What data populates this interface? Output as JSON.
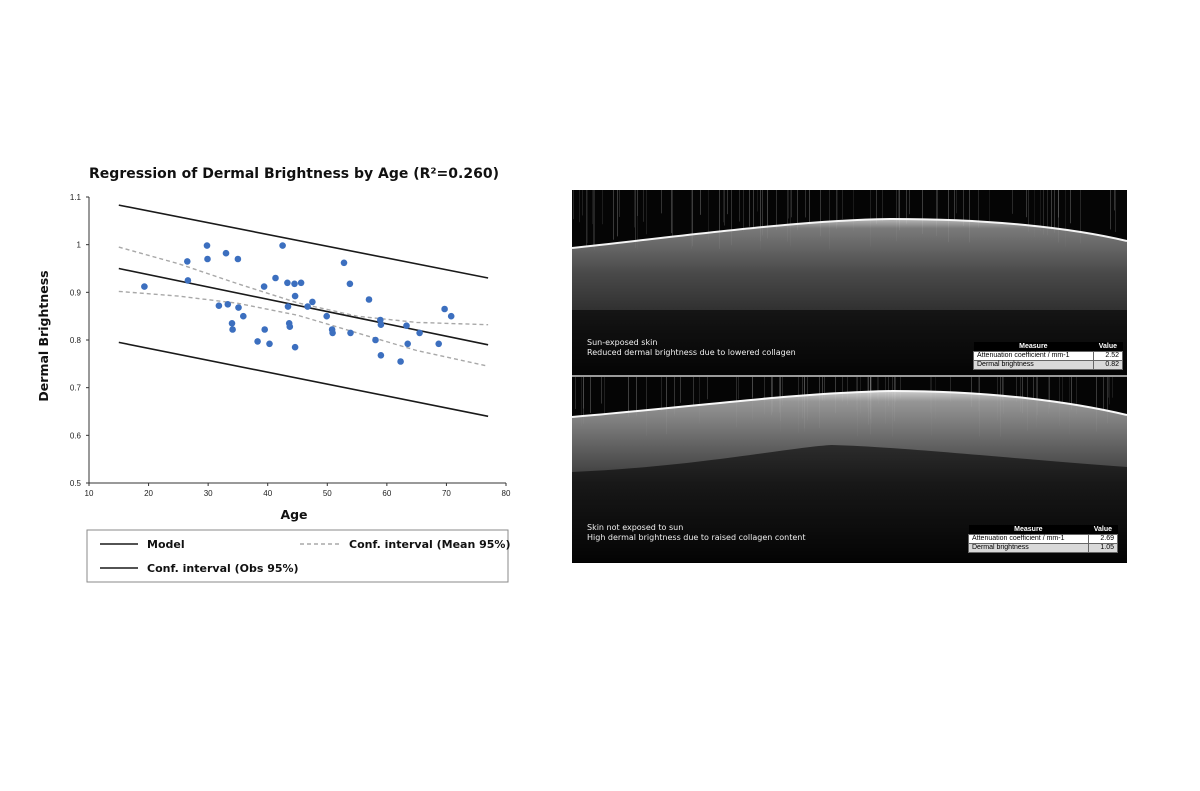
{
  "chart_data": {
    "type": "scatter",
    "title": "Regression of Dermal Brightness by Age (R²=0.260)",
    "xlabel": "Age",
    "ylabel": "Dermal Brightness",
    "xlim": [
      10,
      80
    ],
    "ylim": [
      0.5,
      1.1
    ],
    "xticks": [
      10,
      20,
      30,
      40,
      50,
      60,
      70,
      80
    ],
    "yticks": [
      0.5,
      0.6,
      0.7,
      0.8,
      0.9,
      1,
      1.1
    ],
    "points": [
      [
        19.3,
        0.912
      ],
      [
        26.5,
        0.965
      ],
      [
        26.6,
        0.925
      ],
      [
        29.8,
        0.998
      ],
      [
        29.9,
        0.97
      ],
      [
        31.8,
        0.872
      ],
      [
        33.0,
        0.982
      ],
      [
        33.3,
        0.875
      ],
      [
        34.0,
        0.835
      ],
      [
        34.1,
        0.822
      ],
      [
        35.0,
        0.97
      ],
      [
        35.1,
        0.868
      ],
      [
        35.9,
        0.85
      ],
      [
        38.3,
        0.797
      ],
      [
        39.4,
        0.912
      ],
      [
        39.5,
        0.822
      ],
      [
        40.3,
        0.792
      ],
      [
        41.3,
        0.93
      ],
      [
        42.5,
        0.998
      ],
      [
        43.3,
        0.92
      ],
      [
        43.4,
        0.87
      ],
      [
        43.6,
        0.835
      ],
      [
        43.7,
        0.828
      ],
      [
        44.5,
        0.918
      ],
      [
        44.6,
        0.892
      ],
      [
        44.6,
        0.785
      ],
      [
        45.6,
        0.92
      ],
      [
        46.7,
        0.87
      ],
      [
        47.5,
        0.88
      ],
      [
        49.9,
        0.85
      ],
      [
        50.8,
        0.822
      ],
      [
        50.9,
        0.815
      ],
      [
        52.8,
        0.962
      ],
      [
        53.8,
        0.918
      ],
      [
        53.9,
        0.815
      ],
      [
        57.0,
        0.885
      ],
      [
        58.1,
        0.8
      ],
      [
        58.9,
        0.842
      ],
      [
        59.0,
        0.832
      ],
      [
        59.0,
        0.768
      ],
      [
        62.3,
        0.755
      ],
      [
        63.3,
        0.83
      ],
      [
        63.5,
        0.792
      ],
      [
        65.5,
        0.815
      ],
      [
        68.7,
        0.792
      ],
      [
        69.7,
        0.865
      ],
      [
        70.8,
        0.85
      ]
    ],
    "series": [
      {
        "name": "Model",
        "style": "solid",
        "x": [
          15,
          77
        ],
        "y": [
          0.95,
          0.79
        ]
      },
      {
        "name": "Conf. interval (Mean 95%)",
        "style": "dashed",
        "x": [
          15,
          25,
          35,
          45,
          55,
          65,
          77
        ],
        "y": [
          0.995,
          0.96,
          0.918,
          0.878,
          0.85,
          0.837,
          0.832
        ]
      },
      {
        "name": "Conf. interval (Mean 95%)",
        "style": "dashed",
        "x": [
          15,
          25,
          35,
          45,
          55,
          65,
          77
        ],
        "y": [
          0.902,
          0.892,
          0.877,
          0.852,
          0.815,
          0.778,
          0.745
        ]
      },
      {
        "name": "Conf. interval (Obs 95%)",
        "style": "solid",
        "x": [
          15,
          77
        ],
        "y": [
          1.083,
          0.93
        ]
      },
      {
        "name": "Conf. interval (Obs 95%)",
        "style": "solid",
        "x": [
          15,
          77
        ],
        "y": [
          0.795,
          0.64
        ]
      }
    ],
    "legend": {
      "placement": "bottom",
      "entries": [
        {
          "label": "Model",
          "style": "solid"
        },
        {
          "label": "Conf. interval (Mean 95%)",
          "style": "dashed"
        },
        {
          "label": "Conf. interval (Obs 95%)",
          "style": "solid"
        }
      ]
    },
    "colors": {
      "points": "#3c6fbf",
      "model": "#1a1a1a",
      "mean_ci": "#a8a8a8",
      "obs_ci": "#1a1a1a"
    },
    "grid": false
  },
  "oct": {
    "top": {
      "caption_line1": "Sun-exposed skin",
      "caption_line2": "Reduced dermal brightness due to lowered collagen",
      "table": {
        "header_measure": "Measure",
        "header_value": "Value",
        "rows": [
          {
            "measure": "Attenuation coefficient / mm-1",
            "value": "2.52"
          },
          {
            "measure": "Dermal brightness",
            "value": "0.82"
          }
        ]
      }
    },
    "bottom": {
      "caption_line1": "Skin not exposed to sun",
      "caption_line2": "High dermal brightness due to raised collagen content",
      "table": {
        "header_measure": "Measure",
        "header_value": "Value",
        "rows": [
          {
            "measure": "Attenuation coefficient / mm-1",
            "value": "2.69"
          },
          {
            "measure": "Dermal brightness",
            "value": "1.05"
          }
        ]
      }
    }
  }
}
